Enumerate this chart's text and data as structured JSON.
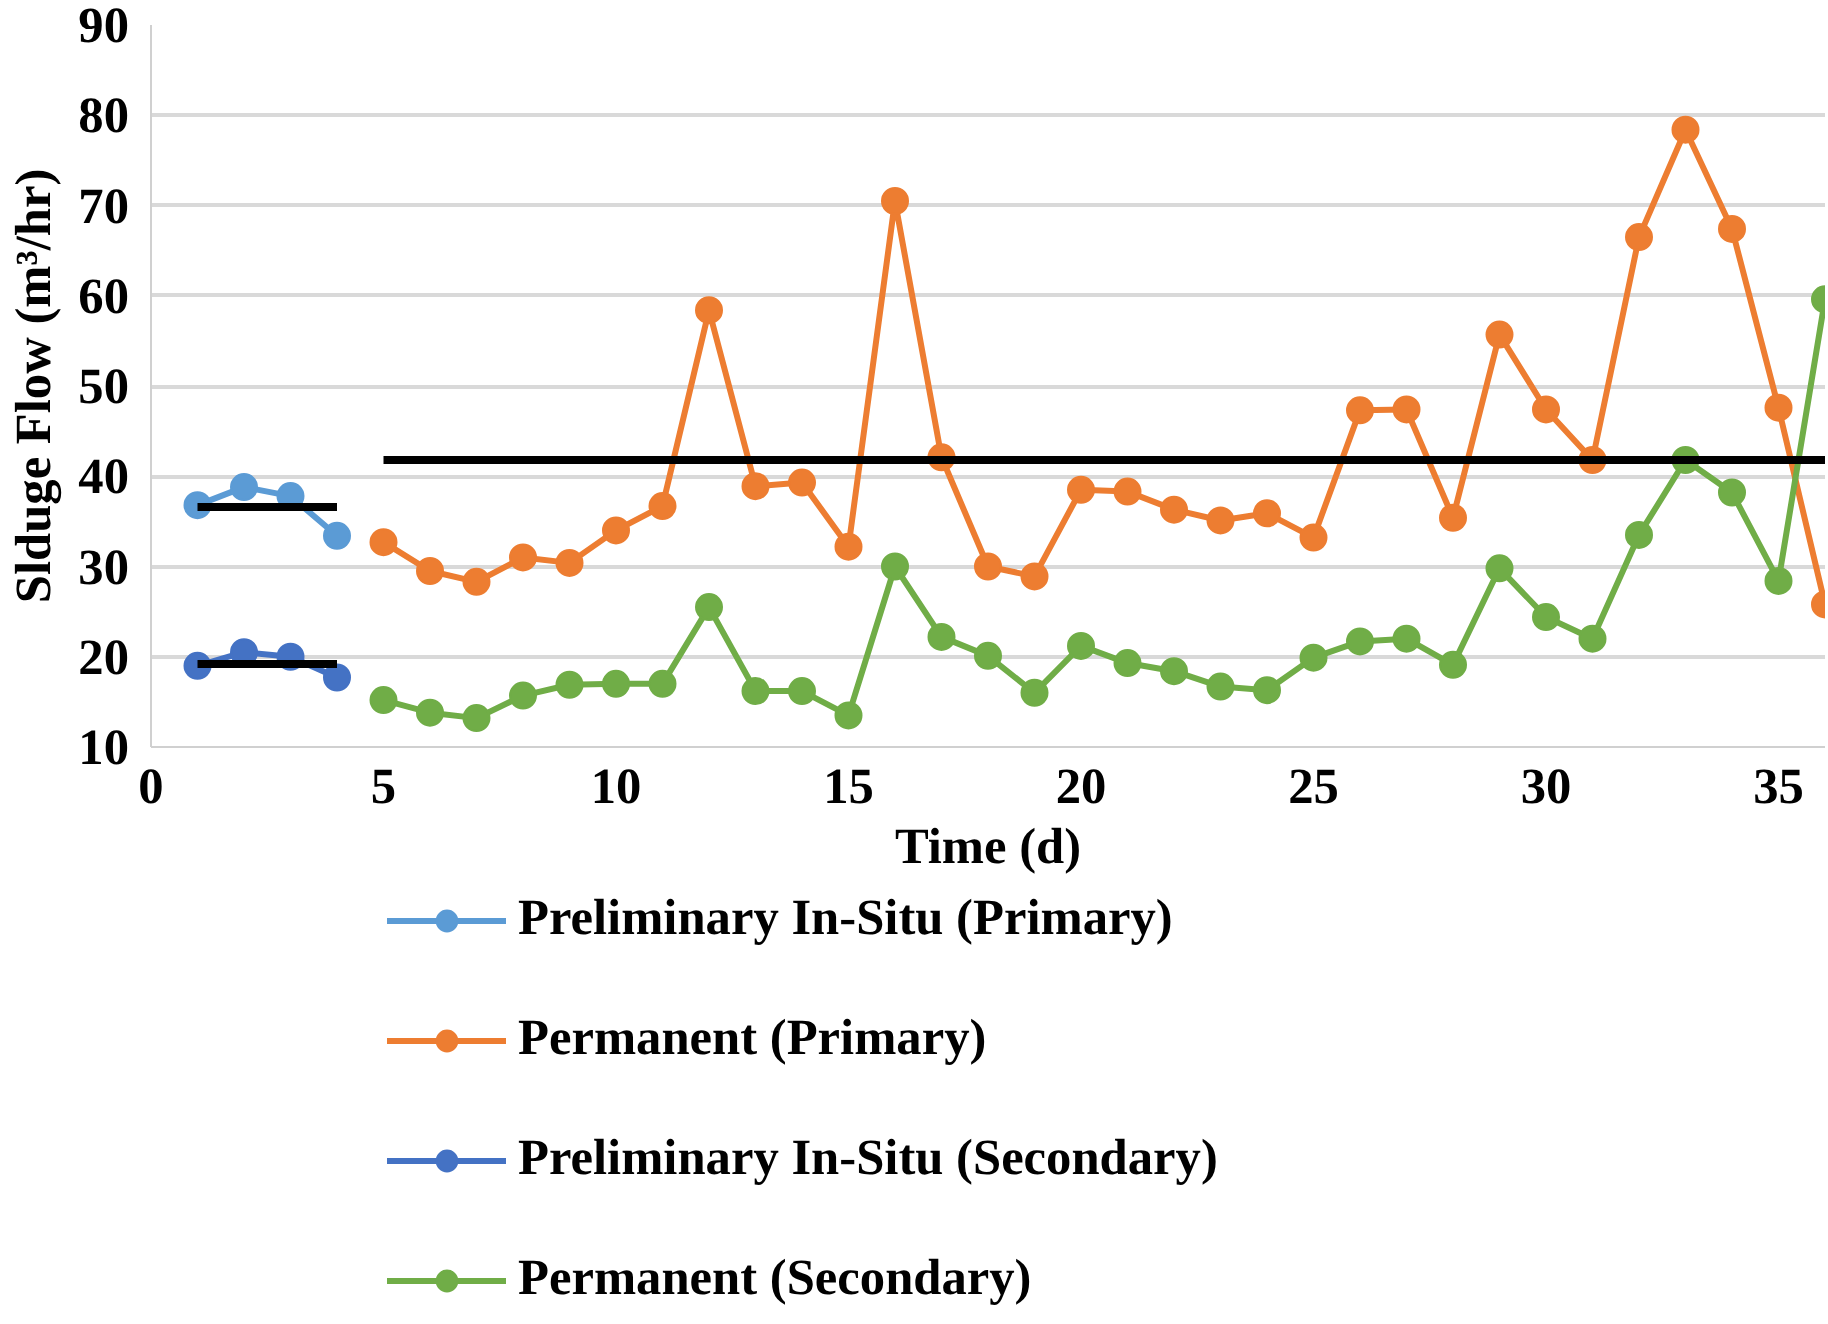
{
  "chart_data": {
    "type": "line",
    "xlabel": "Time (d)",
    "ylabel": "Slduge Flow (m³/hr)",
    "xlim": [
      0,
      36
    ],
    "xticks": [
      0,
      5,
      10,
      15,
      20,
      25,
      30,
      35
    ],
    "ylim": [
      10,
      90
    ],
    "yticks": [
      10,
      20,
      30,
      40,
      50,
      60,
      70,
      80,
      90
    ],
    "grid": "y",
    "legend": "bottom",
    "marker": "circle",
    "line_style": "solid",
    "series": [
      {
        "name": "Preliminary In-Situ (Primary)",
        "color": "#5b9bd5",
        "x": [
          1,
          2,
          3,
          4
        ],
        "values": [
          36.8,
          38.8,
          37.8,
          33.4
        ]
      },
      {
        "name": "Permanent (Primary)",
        "color": "#ed7d31",
        "x": [
          5,
          6,
          7,
          8,
          9,
          10,
          11,
          12,
          13,
          14,
          15,
          16,
          17,
          18,
          19,
          20,
          21,
          22,
          23,
          24,
          25,
          26,
          27,
          28,
          29,
          30,
          31,
          32,
          33,
          34,
          35,
          36
        ],
        "values": [
          32.7,
          29.5,
          28.3,
          31,
          30.4,
          34,
          36.7,
          58.4,
          38.9,
          39.3,
          32.2,
          70.5,
          42.1,
          30,
          28.9,
          38.5,
          38.3,
          36.3,
          35.1,
          35.9,
          33.2,
          47.3,
          47.4,
          35.4,
          55.7,
          47.4,
          41.8,
          66.5,
          78.4,
          67.4,
          47.6,
          25.8
        ]
      },
      {
        "name": "Preliminary In-Situ (Secondary)",
        "color": "#4472c4",
        "x": [
          1,
          2,
          3,
          4
        ],
        "values": [
          19,
          20.5,
          20,
          17.7
        ]
      },
      {
        "name": "Permanent (Secondary)",
        "color": "#70ad47",
        "x": [
          5,
          6,
          7,
          8,
          9,
          10,
          11,
          12,
          13,
          14,
          15,
          16,
          17,
          18,
          19,
          20,
          21,
          22,
          23,
          24,
          25,
          26,
          27,
          28,
          29,
          30,
          31,
          32,
          33,
          34,
          35,
          36
        ],
        "values": [
          15.2,
          13.8,
          13.2,
          15.7,
          16.9,
          17,
          17,
          25.5,
          16.2,
          16.2,
          13.5,
          30,
          22.2,
          20.1,
          16,
          21.2,
          19.3,
          18.4,
          16.7,
          16.3,
          19.9,
          21.7,
          22,
          19.1,
          29.8,
          24.4,
          22,
          33.5,
          41.8,
          38.2,
          28.4,
          59.6
        ]
      },
      {
        "color": "#000000",
        "marker": "none",
        "x": [
          1,
          4
        ],
        "values": [
          36.6,
          36.6
        ]
      },
      {
        "color": "#000000",
        "marker": "none",
        "x": [
          1,
          4
        ],
        "values": [
          19.2,
          19.2
        ]
      },
      {
        "color": "#000000",
        "marker": "none",
        "x": [
          5,
          36
        ],
        "values": [
          41.8,
          41.8
        ]
      }
    ]
  }
}
